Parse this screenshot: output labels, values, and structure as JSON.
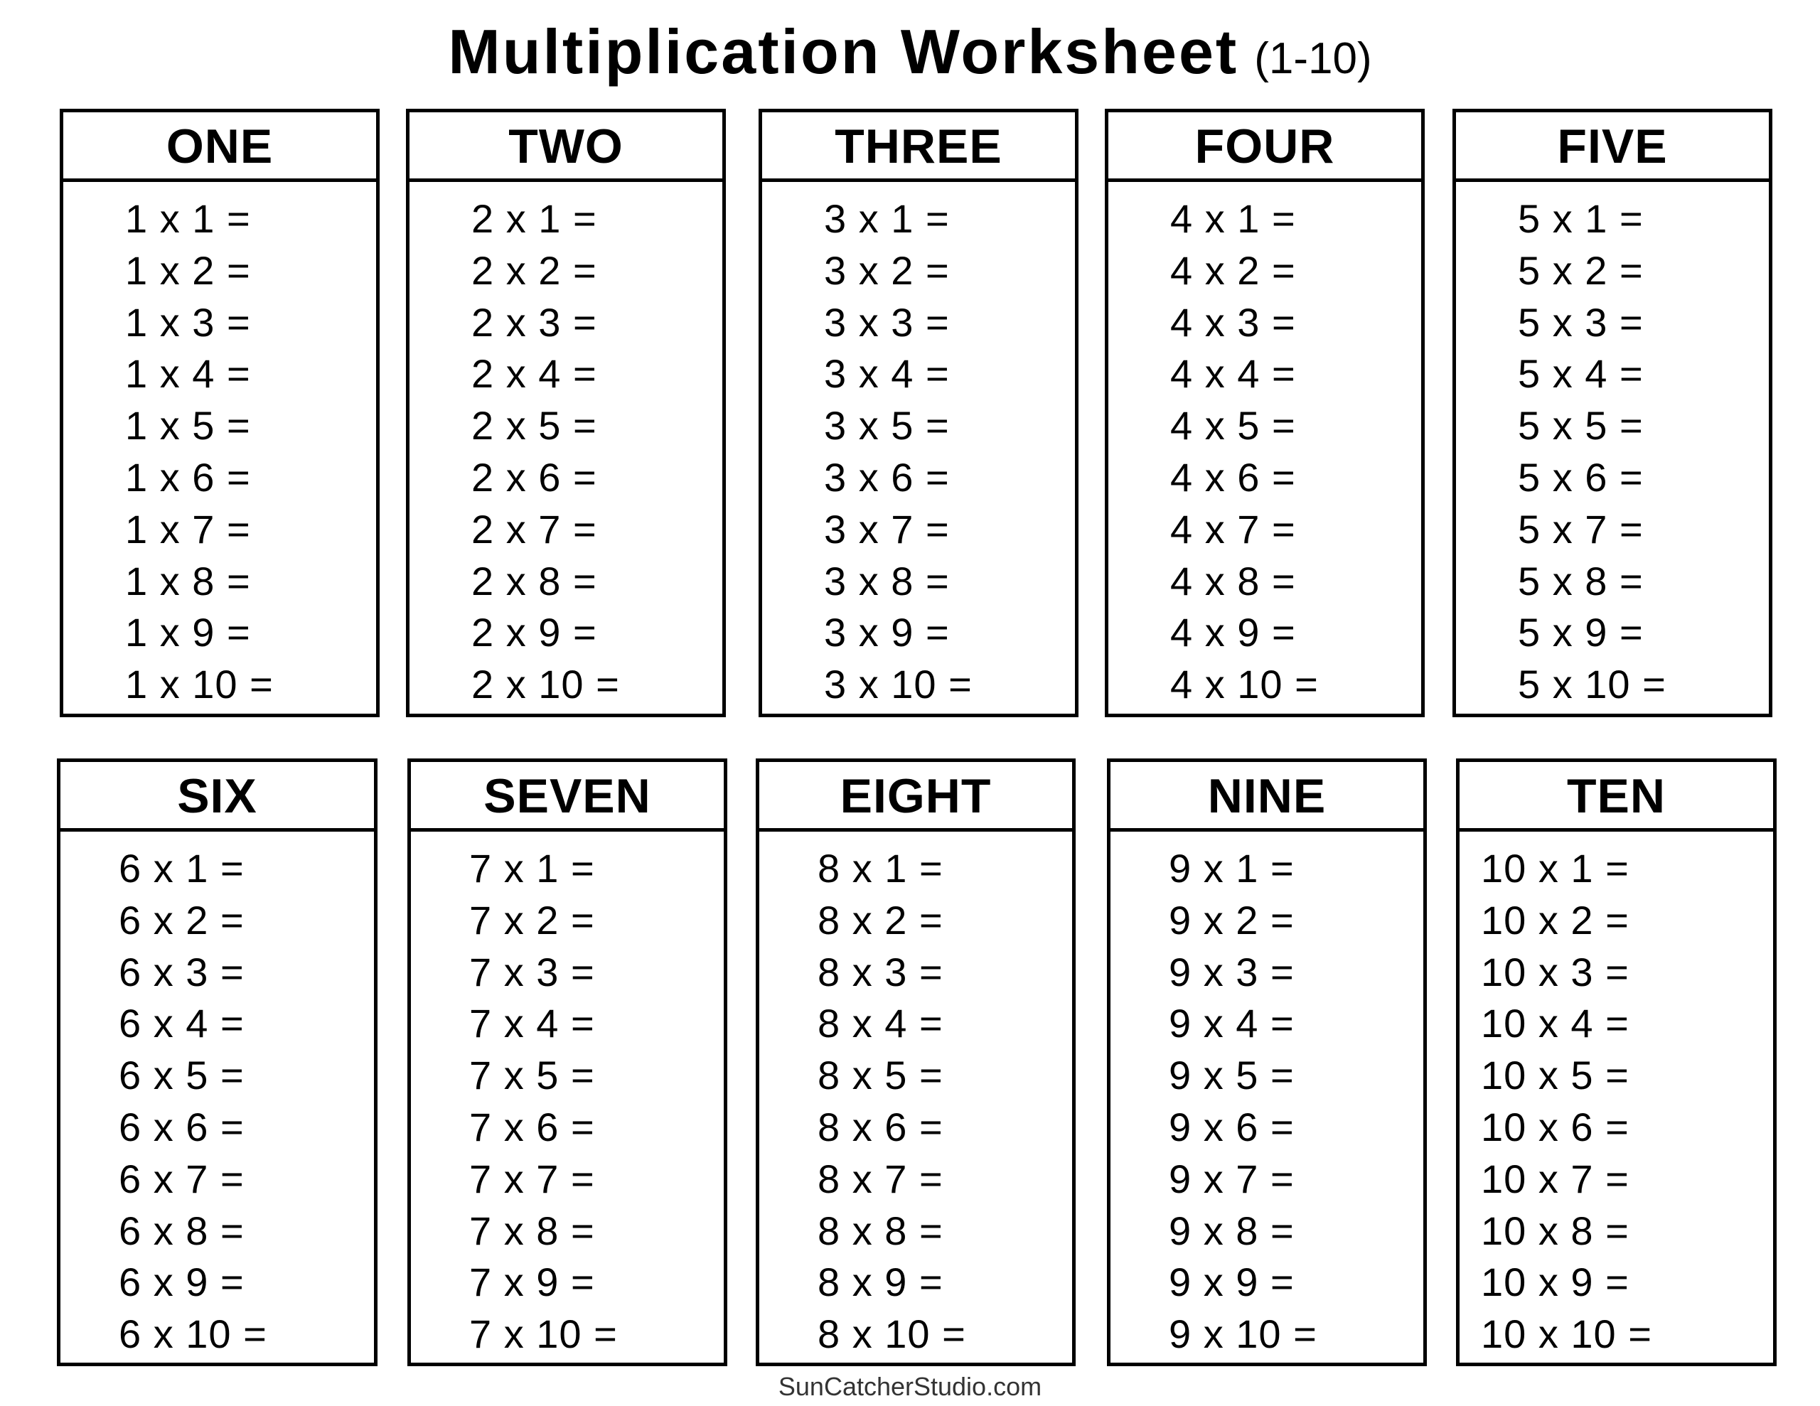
{
  "title": {
    "main": "Multiplication Worksheet",
    "range": "(1-10)"
  },
  "tables": [
    {
      "heading": "ONE",
      "rows": [
        "1 x 1 =",
        "1 x 2 =",
        "1 x 3 =",
        "1 x 4 =",
        "1 x 5 =",
        "1 x 6 =",
        "1 x 7 =",
        "1 x 8 =",
        "1 x 9 =",
        "1 x 10 ="
      ]
    },
    {
      "heading": "TWO",
      "rows": [
        "2 x 1 =",
        "2 x 2 =",
        "2 x 3 =",
        "2 x 4 =",
        "2 x 5 =",
        "2 x 6 =",
        "2 x 7 =",
        "2 x 8 =",
        "2 x 9 =",
        "2 x 10 ="
      ]
    },
    {
      "heading": "THREE",
      "rows": [
        "3 x 1 =",
        "3 x 2 =",
        "3 x 3 =",
        "3 x 4 =",
        "3 x 5 =",
        "3 x 6 =",
        "3 x 7 =",
        "3 x 8 =",
        "3 x 9 =",
        "3 x 10 ="
      ]
    },
    {
      "heading": "FOUR",
      "rows": [
        "4 x 1 =",
        "4 x 2 =",
        "4 x 3 =",
        "4 x 4 =",
        "4 x 5 =",
        "4 x 6 =",
        "4 x 7 =",
        "4 x 8 =",
        "4 x 9 =",
        "4 x 10 ="
      ]
    },
    {
      "heading": "FIVE",
      "rows": [
        "5 x 1 =",
        "5 x 2 =",
        "5 x 3 =",
        "5 x 4 =",
        "5 x 5 =",
        "5 x 6 =",
        "5 x 7 =",
        "5 x 8 =",
        "5 x 9 =",
        "5 x 10 ="
      ]
    },
    {
      "heading": "SIX",
      "rows": [
        "6 x 1 =",
        "6 x 2 =",
        "6 x 3 =",
        "6 x 4 =",
        "6 x 5 =",
        "6 x 6 =",
        "6 x 7 =",
        "6 x 8 =",
        "6 x 9 =",
        "6 x 10 ="
      ]
    },
    {
      "heading": "SEVEN",
      "rows": [
        "7 x 1 =",
        "7 x 2 =",
        "7 x 3 =",
        "7 x 4 =",
        "7 x 5 =",
        "7 x 6 =",
        "7 x 7 =",
        "7 x 8 =",
        "7 x 9 =",
        "7 x 10 ="
      ]
    },
    {
      "heading": "EIGHT",
      "rows": [
        "8 x 1 =",
        "8 x 2 =",
        "8 x 3 =",
        "8 x 4 =",
        "8 x 5 =",
        "8 x 6 =",
        "8 x 7 =",
        "8 x 8 =",
        "8 x 9 =",
        "8 x 10 ="
      ]
    },
    {
      "heading": "NINE",
      "rows": [
        "9 x 1 =",
        "9 x 2 =",
        "9 x 3 =",
        "9 x 4 =",
        "9 x 5 =",
        "9 x 6 =",
        "9 x 7 =",
        "9 x 8 =",
        "9 x 9 =",
        "9 x 10 ="
      ]
    },
    {
      "heading": "TEN",
      "rows": [
        "10 x 1 =",
        "10 x 2 =",
        "10 x 3 =",
        "10 x 4 =",
        "10 x 5 =",
        "10 x 6 =",
        "10 x 7 =",
        "10 x 8 =",
        "10 x 9 =",
        "10 x 10 ="
      ]
    }
  ],
  "footer": "SunCatcherStudio.com"
}
